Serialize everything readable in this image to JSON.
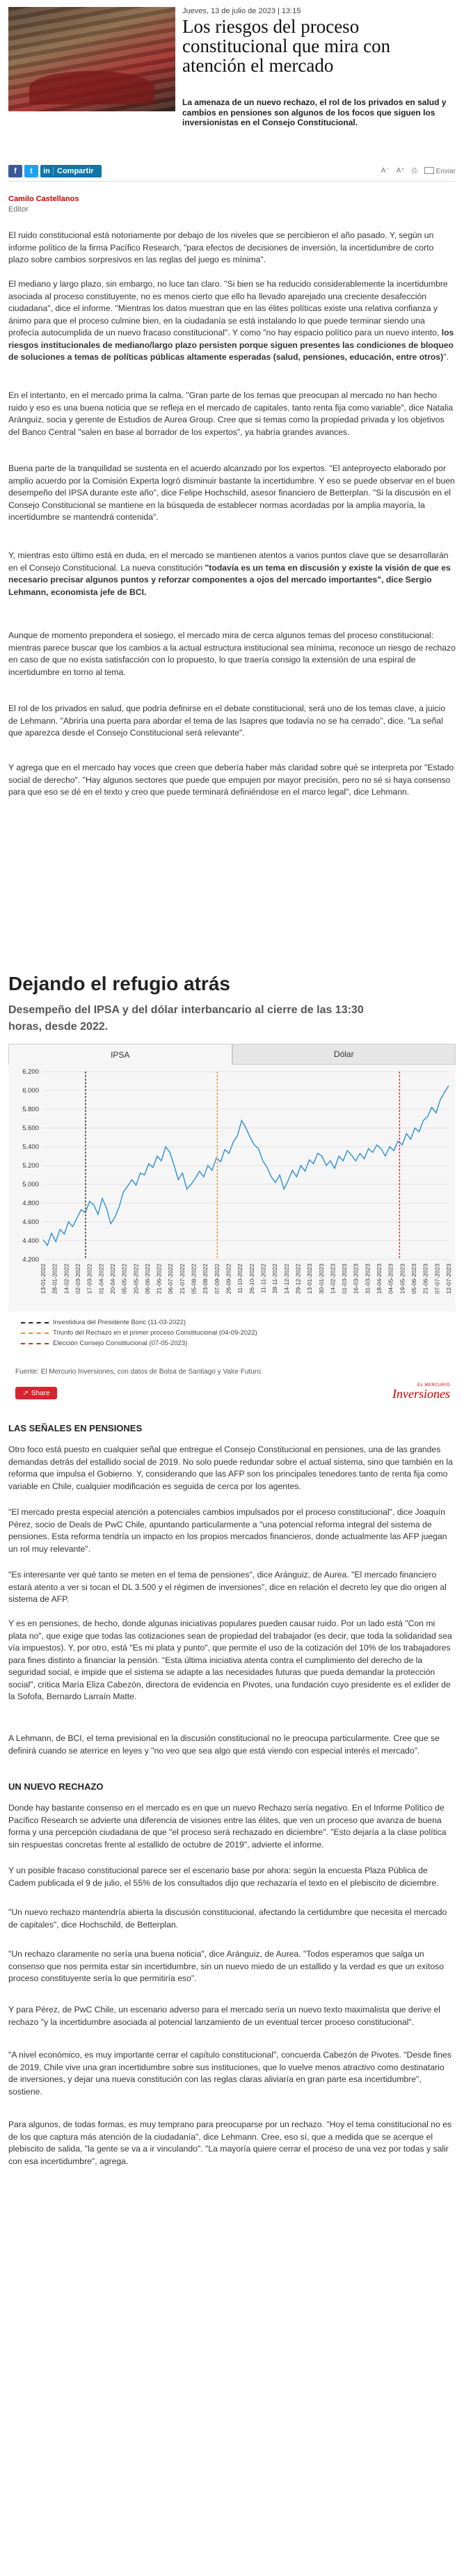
{
  "header": {
    "dateline": "Jueves, 13 de julio de 2023 | 13:15",
    "title": "Los riesgos del proceso constitucional que mira con atención el mercado",
    "lead": "La amenaza de un nuevo rechazo, el rol de los privados en salud y cambios en pensiones son algunos de los focos que siguen los inversionistas en el Consejo Constitucional."
  },
  "toolbar": {
    "facebook": "f",
    "twitter": "t",
    "linkedin_icon": "in",
    "linkedin_label": "Compartir",
    "font_smaller": "A⁻",
    "font_larger": "A⁺",
    "print_icon": "⎙",
    "email_label": "Enviar"
  },
  "author": {
    "name": "Camilo Castellanos",
    "role": "Editor"
  },
  "paragraphs": [
    "El ruido constitucional está notoriamente por debajo de los niveles que se percibieron el año pasado. Y, según un informe político de la firma Pacífico Research, \"para efectos de decisiones de inversión, la incertidumbre de corto plazo sobre cambios sorpresivos en las reglas del juego es mínima\".",
    "El mediano y largo plazo, sin embargo, no luce tan claro. \"Si bien se ha reducido considerablemente la incertidumbre asociada al proceso constituyente, no es menos cierto que ello ha llevado aparejado una creciente desafección ciudadana\", dice el informe. \"Mientras los datos muestran que en las élites políticas existe una relativa confianza y ánimo para que el proceso culmine bien, en la ciudadanía se está instalando lo que puede terminar siendo una profecía autocumplida de un nuevo fracaso constitucional\". Y como \"no hay espacio político para un nuevo intento, los riesgos institucionales de mediano/largo plazo persisten porque siguen presentes las condiciones de bloqueo de soluciones a temas de políticas públicas altamente esperadas (salud, pensiones, educación, entre otros)\".",
    "En el intertanto, en el mercado prima la calma. \"Gran parte de los temas que preocupan al mercado no han hecho ruido y eso es una buena noticia que se refleja en el mercado de capitales, tanto renta fija como variable\", dice Natalia Aránguiz, socia y gerente de Estudios de Aurea Group. Cree que si temas como la propiedad privada y los objetivos del Banco Central \"salen en base al borrador de los expertos\", ya habría grandes avances.",
    "Buena parte de la tranquilidad se sustenta en el acuerdo alcanzado por los expertos. \"El anteproyecto elaborado por amplio acuerdo por la Comisión Experta logró disminuir bastante la incertidumbre. Y eso se puede observar en el buen desempeño del IPSA durante este año\", dice Felipe Hochschild, asesor financiero de Betterplan. \"Si la discusión en el Consejo Constitucional se mantiene en la búsqueda de establecer normas acordadas por la amplia mayoría, la incertidumbre se mantendrá contenida\".",
    "Y, mientras esto último está en duda, en el mercado se mantienen atentos a varios puntos clave que se desarrollarán en el Consejo Constitucional. La nueva constitución \"todavía es un tema en discusión y existe la visión de que es necesario precisar algunos puntos y reforzar componentes a ojos del mercado importantes\", dice Sergio Lehmann, economista jefe de BCI.",
    "Aunque de momento prepondera el sosiego, el mercado mira de cerca algunos temas del proceso constitucional: mientras parece buscar que los cambios a la actual estructura institucional sea mínima, reconoce un riesgo de rechazo en caso de que no exista satisfacción con lo propuesto, lo que traería consigo la extensión de una espiral de incertidumbre en torno al tema.",
    "El rol de los privados en salud, que podría definirse en el debate constitucional, será uno de los temas clave, a juicio de Lehmann. \"Abriría una puerta para abordar el tema de las Isapres que todavía no se ha cerrado\", dice. \"La señal que aparezca desde el Consejo Constitucional será relevante\".",
    "Y agrega que en el mercado hay voces que creen que debería haber más claridad sobre qué se interpreta por \"Estado social de derecho\". \"Hay algunos sectores que puede que empujen por mayor precisión, pero no sé si haya consenso para que eso se dé en el texto y creo que puede terminará definiéndose en el marco legal\", dice Lehmann.",
    "Otro foco está puesto en cualquier señal que entregue el Consejo Constitucional en pensiones, una de las grandes demandas detrás del estallido social de 2019. No solo puede redundar sobre el actual sistema, sino que también en la reforma que impulsa el Gobierno. Y, considerando que las AFP son los principales tenedores tanto de renta fija como variable en Chile, cualquier modificación es seguida de cerca por los agentes.",
    "\"El mercado presta especial atención a potenciales cambios impulsados por el proceso constitucional\", dice Joaquín Pérez, socio de Deals de PwC Chile, apuntando particularmente a \"una potencial reforma integral del sistema de pensiones. Esta reforma tendría un impacto en los propios mercados financieros, donde actualmente las AFP juegan un rol muy relevante\".",
    "\"Es interesante ver qué tanto se meten en el tema de pensiones\", dice Aránguiz, de Aurea. \"El mercado financiero estará atento a ver si tocan el DL 3.500 y el régimen de inversiones\", dice en relación el decreto ley que dio origen al sistema de AFP.",
    "Y es en pensiones, de hecho, donde algunas iniciativas populares pueden causar ruido. Por un lado está \"Con mi plata no\", que exige que todas las cotizaciones sean de propiedad del trabajador (es decir, que toda la solidaridad sea vía impuestos). Y, por otro, está \"Es mi plata y punto\", que permite el uso de la cotización del 10% de los trabajadores para fines distinto a financiar la pensión. \"Esta última iniciativa atenta contra el cumplimiento del derecho de la seguridad social, e impide que el sistema se adapte a las necesidades futuras que pueda demandar la protección social\", critica María Eliza Cabezón, directora de evidencia en Pivotes, una fundación cuyo presidente es el exlíder de la Sofofa, Bernardo Larraín Matte.",
    "A Lehmann, de BCI, el tema previsional en la discusión constitucional no le preocupa particularmente. Cree que se definirá cuando se aterrice en leyes y \"no veo que sea algo que está viendo con especial interés el mercado\".",
    "Donde hay bastante consenso en el mercado es en que un nuevo Rechazo sería negativo. En el Informe Político de Pacífico Research se advierte una diferencia de visiones entre las élites, que ven un proceso que avanza de buena forma y una percepción ciudadana de que \"el proceso será rechazado en diciembre\". \"Esto dejaría a la clase política sin respuestas concretas frente al estallido de octubre de 2019\", advierte el informe.",
    "Y un posible fracaso constitucional parece ser el escenario base por ahora: según la encuesta Plaza Pública de Cadem publicada el 9 de julio, el 55% de los consultados dijo que rechazaría el texto en el plebiscito de diciembre.",
    "\"Un nuevo rechazo mantendría abierta la discusión constitucional, afectando la certidumbre que necesita el mercado de capitales\", dice Hochschild, de Betterplan.",
    "\"Un rechazo claramente no sería una buena noticia\", dice Aránguiz, de Aurea. \"Todos esperamos que salga un consenso que nos permita estar sin incertidumbre, sin un nuevo miedo de un estallido y la verdad es que un exitoso proceso constituyente sería lo que permitiría eso\".",
    "Y para Pérez, de PwC Chile, un escenario adverso para el mercado sería un nuevo texto maximalista que derive el rechazo \"y la incertidumbre asociada al potencial lanzamiento de un eventual tercer proceso constitucional\".",
    "\"A nivel económico, es muy importante cerrar el capítulo constitucional\", concuerda Cabezón de Pivotes. \"Desde fines de 2019, Chile vive una gran incertidumbre sobre sus instituciones, que lo vuelve menos atractivo como destinatario de inversiones, y dejar una nueva constitución con las reglas claras aliviaría en gran parte esa incertidumbre\", sostiene.",
    "Para algunos, de todas formas, es muy temprano para preocuparse por un rechazo. \"Hoy el tema constitucional no es de los que captura más atención de la ciudadanía\", dice Lehmann. Cree, eso sí, que a medida que se acerque el plebiscito de salida, \"la gente se va a ir vinculando\". \"La mayoría quiere cerrar el proceso de una vez por todas y salir con esa incertidumbre\", agrega."
  ],
  "sections": {
    "pensions": "LAS SEÑALES EN PENSIONES",
    "rejection": "UN NUEVO RECHAZO"
  },
  "chart_data": {
    "type": "line",
    "title": "Dejando el refugio atrás",
    "subtitle": "Desempeño del IPSA y del dólar interbancario al cierre de las 13:30 horas, desde 2022.",
    "tabs": [
      "IPSA",
      "Dólar"
    ],
    "active_tab": "IPSA",
    "ylim": [
      4200,
      6200
    ],
    "y_ticks": [
      "4.200",
      "4.400",
      "4.600",
      "4.800",
      "5.000",
      "5.200",
      "5.400",
      "5.600",
      "5.800",
      "6.000",
      "6.200"
    ],
    "x_ticks": [
      "13-01-2022",
      "28-01-2022",
      "14-02-2022",
      "02-03-2022",
      "17-03-2022",
      "01-04-2022",
      "20-04-2022",
      "05-05-2022",
      "20-05-2022",
      "06-06-2022",
      "21-06-2022",
      "06-07-2022",
      "21-07-2022",
      "05-08-2022",
      "23-08-2022",
      "07-09-2022",
      "26-09-2022",
      "11-10-2022",
      "26-10-2022",
      "11-11-2022",
      "28-11-2022",
      "14-12-2022",
      "29-12-2022",
      "13-01-2023",
      "30-01-2023",
      "14-02-2023",
      "01-03-2023",
      "16-03-2023",
      "31-03-2023",
      "18-04-2023",
      "04-05-2023",
      "19-05-2023",
      "05-06-2023",
      "21-06-2023",
      "07-07-2023",
      "12-07-2023"
    ],
    "series": [
      {
        "values": [
          4410,
          4350,
          4480,
          4390,
          4520,
          4470,
          4600,
          4550,
          4640,
          4730,
          4700,
          4820,
          4780,
          4680,
          4850,
          4750,
          4580,
          4650,
          4760,
          4920,
          4980,
          5050,
          4990,
          5120,
          5100,
          5220,
          5180,
          5300,
          5250,
          5400,
          5340,
          5200,
          5050,
          5120,
          4950,
          5000,
          5060,
          5140,
          5080,
          5200,
          5150,
          5280,
          5240,
          5370,
          5330,
          5450,
          5520,
          5680,
          5600,
          5500,
          5420,
          5380,
          5250,
          5180,
          5080,
          5020,
          5100,
          4950,
          5040,
          5150,
          5080,
          5200,
          5140,
          5260,
          5220,
          5330,
          5300,
          5200,
          5250,
          5170,
          5300,
          5250,
          5360,
          5310,
          5250,
          5330,
          5270,
          5380,
          5340,
          5420,
          5380,
          5300,
          5400,
          5360,
          5460,
          5420,
          5540,
          5480,
          5600,
          5560,
          5680,
          5720,
          5820,
          5760,
          5900,
          5980,
          6050
        ]
      }
    ],
    "markers": [
      {
        "date": "11-03-2022",
        "label": "Investidura del Presidente Boric (11-03-2022)",
        "color": "#222222"
      },
      {
        "date": "04-09-2022",
        "label": "Triunfo del Rechazo en el primer proceso Constitucional (04-09-2022)",
        "color": "#f08a24"
      },
      {
        "date": "07-05-2023",
        "label": "Elección Consejo Constitucional (07-05-2023)",
        "color": "#d9232e"
      }
    ],
    "line_color": "#2b8fd6",
    "source": "Fuente: El Mercurio Inversiones, con datos de Bolsa de Santiago y Valor Futuro.",
    "share_label": "Share",
    "brand_top": "EL MERCURIO",
    "brand_name": "Inversiones"
  }
}
